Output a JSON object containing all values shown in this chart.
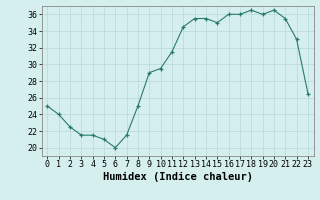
{
  "x": [
    0,
    1,
    2,
    3,
    4,
    5,
    6,
    7,
    8,
    9,
    10,
    11,
    12,
    13,
    14,
    15,
    16,
    17,
    18,
    19,
    20,
    21,
    22,
    23
  ],
  "y": [
    25,
    24,
    22.5,
    21.5,
    21.5,
    21,
    20,
    21.5,
    25,
    29,
    29.5,
    31.5,
    34.5,
    35.5,
    35.5,
    35,
    36,
    36,
    36.5,
    36,
    36.5,
    35.5,
    33,
    26.5
  ],
  "line_color": "#2a7a6a",
  "marker_color": "#2a7a6a",
  "bg_color": "#d5efef",
  "grid_color": "#b8d8d8",
  "xlabel": "Humidex (Indice chaleur)",
  "xlim": [
    -0.5,
    23.5
  ],
  "ylim": [
    19,
    37
  ],
  "yticks": [
    20,
    22,
    24,
    26,
    28,
    30,
    32,
    34,
    36
  ],
  "xtick_labels": [
    "0",
    "1",
    "2",
    "3",
    "4",
    "5",
    "6",
    "7",
    "8",
    "9",
    "10",
    "11",
    "12",
    "13",
    "14",
    "15",
    "16",
    "17",
    "18",
    "19",
    "20",
    "21",
    "22",
    "23"
  ],
  "tick_fontsize": 6,
  "label_fontsize": 7.5
}
